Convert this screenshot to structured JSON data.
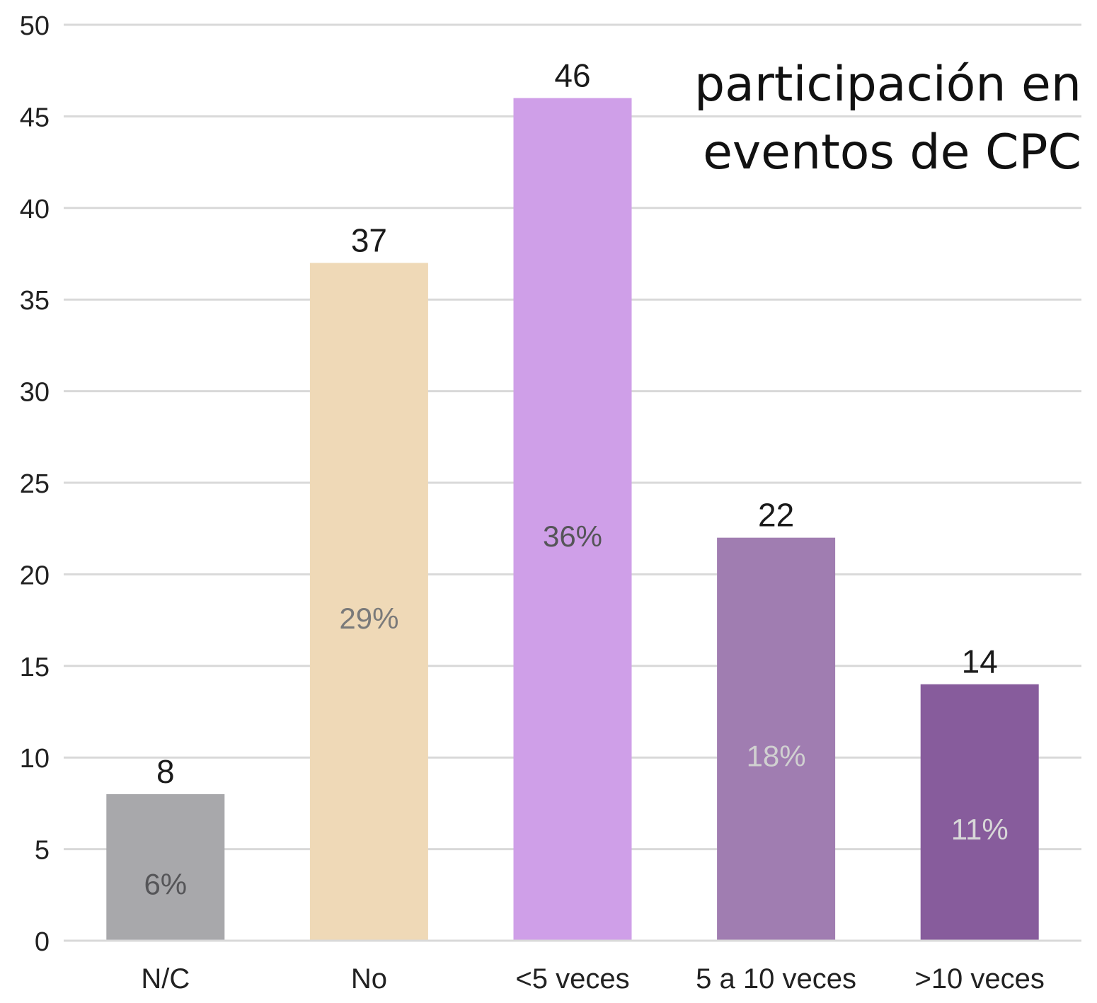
{
  "chart_data": {
    "type": "bar",
    "title": [
      "participación en",
      "eventos de CPC"
    ],
    "categories": [
      "N/C",
      "No",
      "<5 veces",
      "5 a 10 veces",
      ">10 veces"
    ],
    "values": [
      8,
      37,
      46,
      22,
      14
    ],
    "percent_labels": [
      "6%",
      "29%",
      "36%",
      "18%",
      "11%"
    ],
    "colors": [
      "#a8a8ab",
      "#efd9b7",
      "#cf9fe8",
      "#a07db1",
      "#875c9c"
    ],
    "percent_label_colors": [
      "#555558",
      "#7a7a7a",
      "#555558",
      "#d0d0d0",
      "#d8d8d8"
    ],
    "xlabel": "",
    "ylabel": "",
    "ylim": [
      0,
      50
    ],
    "yticks": [
      0,
      5,
      10,
      15,
      20,
      25,
      30,
      35,
      40,
      45,
      50
    ],
    "grid": true,
    "legend": "none"
  }
}
